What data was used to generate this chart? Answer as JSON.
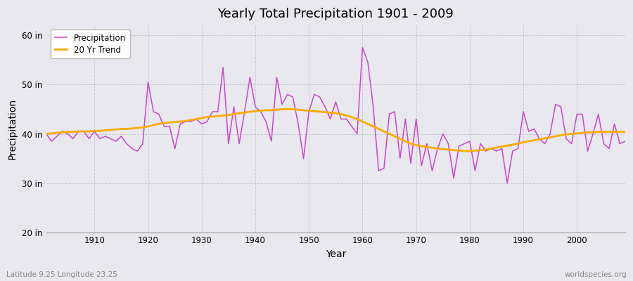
{
  "title": "Yearly Total Precipitation 1901 - 2009",
  "xlabel": "Year",
  "ylabel": "Precipitation",
  "subtitle": "Latitude 9.25 Longitude 23.25",
  "watermark": "worldspecies.org",
  "ylim": [
    20,
    62
  ],
  "yticks": [
    20,
    30,
    40,
    50,
    60
  ],
  "ytick_labels": [
    "20 in",
    "30 in",
    "40 in",
    "50 in",
    "60 in"
  ],
  "xlim": [
    1901,
    2009
  ],
  "fig_bg_color": "#e8e8ee",
  "plot_bg_color": "#e8e8ee",
  "precip_color": "#cc44cc",
  "trend_color": "#ffaa00",
  "precip_linewidth": 1.1,
  "trend_linewidth": 2.0,
  "years": [
    1901,
    1902,
    1903,
    1904,
    1905,
    1906,
    1907,
    1908,
    1909,
    1910,
    1911,
    1912,
    1913,
    1914,
    1915,
    1916,
    1917,
    1918,
    1919,
    1920,
    1921,
    1922,
    1923,
    1924,
    1925,
    1926,
    1927,
    1928,
    1929,
    1930,
    1931,
    1932,
    1933,
    1934,
    1935,
    1936,
    1937,
    1938,
    1939,
    1940,
    1941,
    1942,
    1943,
    1944,
    1945,
    1946,
    1947,
    1948,
    1949,
    1950,
    1951,
    1952,
    1953,
    1954,
    1955,
    1956,
    1957,
    1958,
    1959,
    1960,
    1961,
    1962,
    1963,
    1964,
    1965,
    1966,
    1967,
    1968,
    1969,
    1970,
    1971,
    1972,
    1973,
    1974,
    1975,
    1976,
    1977,
    1978,
    1979,
    1980,
    1981,
    1982,
    1983,
    1984,
    1985,
    1986,
    1987,
    1988,
    1989,
    1990,
    1991,
    1992,
    1993,
    1994,
    1995,
    1996,
    1997,
    1998,
    1999,
    2000,
    2001,
    2002,
    2003,
    2004,
    2005,
    2006,
    2007,
    2008,
    2009
  ],
  "precip": [
    40.0,
    38.5,
    39.5,
    40.5,
    40.0,
    39.0,
    40.5,
    40.5,
    39.0,
    40.5,
    39.0,
    39.5,
    39.0,
    38.5,
    39.5,
    38.0,
    37.0,
    36.5,
    38.0,
    50.5,
    44.5,
    44.0,
    41.5,
    41.5,
    37.0,
    42.0,
    42.5,
    42.5,
    43.0,
    42.0,
    42.5,
    44.5,
    44.5,
    53.5,
    38.0,
    45.5,
    38.0,
    44.5,
    51.5,
    45.5,
    44.5,
    42.5,
    38.5,
    51.5,
    46.0,
    48.0,
    47.5,
    42.0,
    35.0,
    44.5,
    48.0,
    47.5,
    45.5,
    43.0,
    46.5,
    43.0,
    43.0,
    41.5,
    40.0,
    57.5,
    54.5,
    45.5,
    32.5,
    33.0,
    44.0,
    44.5,
    35.0,
    43.0,
    34.0,
    43.0,
    33.5,
    38.0,
    32.5,
    37.0,
    40.0,
    38.0,
    31.0,
    37.5,
    38.0,
    38.5,
    32.5,
    38.0,
    36.5,
    37.0,
    36.5,
    37.0,
    30.0,
    36.5,
    37.0,
    44.5,
    40.5,
    41.0,
    39.0,
    38.0,
    40.0,
    46.0,
    45.5,
    39.0,
    38.0,
    44.0,
    44.0,
    36.5,
    40.0,
    44.0,
    38.0,
    37.0,
    42.0,
    38.0,
    38.5
  ],
  "trend": [
    40.0,
    40.1,
    40.2,
    40.3,
    40.4,
    40.4,
    40.5,
    40.5,
    40.5,
    40.6,
    40.6,
    40.7,
    40.8,
    40.9,
    41.0,
    41.0,
    41.1,
    41.2,
    41.3,
    41.5,
    41.8,
    42.0,
    42.2,
    42.3,
    42.4,
    42.5,
    42.6,
    42.8,
    43.0,
    43.2,
    43.4,
    43.5,
    43.6,
    43.7,
    43.8,
    44.0,
    44.2,
    44.3,
    44.5,
    44.6,
    44.7,
    44.8,
    44.8,
    44.9,
    45.0,
    45.0,
    45.0,
    44.9,
    44.8,
    44.7,
    44.6,
    44.5,
    44.4,
    44.3,
    44.2,
    44.0,
    43.7,
    43.4,
    43.0,
    42.5,
    42.0,
    41.5,
    41.0,
    40.5,
    40.0,
    39.5,
    39.0,
    38.5,
    38.0,
    37.7,
    37.5,
    37.3,
    37.2,
    37.0,
    36.9,
    36.8,
    36.7,
    36.6,
    36.5,
    36.5,
    36.6,
    36.7,
    36.8,
    37.0,
    37.2,
    37.4,
    37.6,
    37.8,
    38.0,
    38.3,
    38.5,
    38.7,
    38.9,
    39.1,
    39.3,
    39.5,
    39.7,
    39.9,
    40.0,
    40.1,
    40.2,
    40.3,
    40.3,
    40.4,
    40.4,
    40.4,
    40.4,
    40.4,
    40.4
  ]
}
